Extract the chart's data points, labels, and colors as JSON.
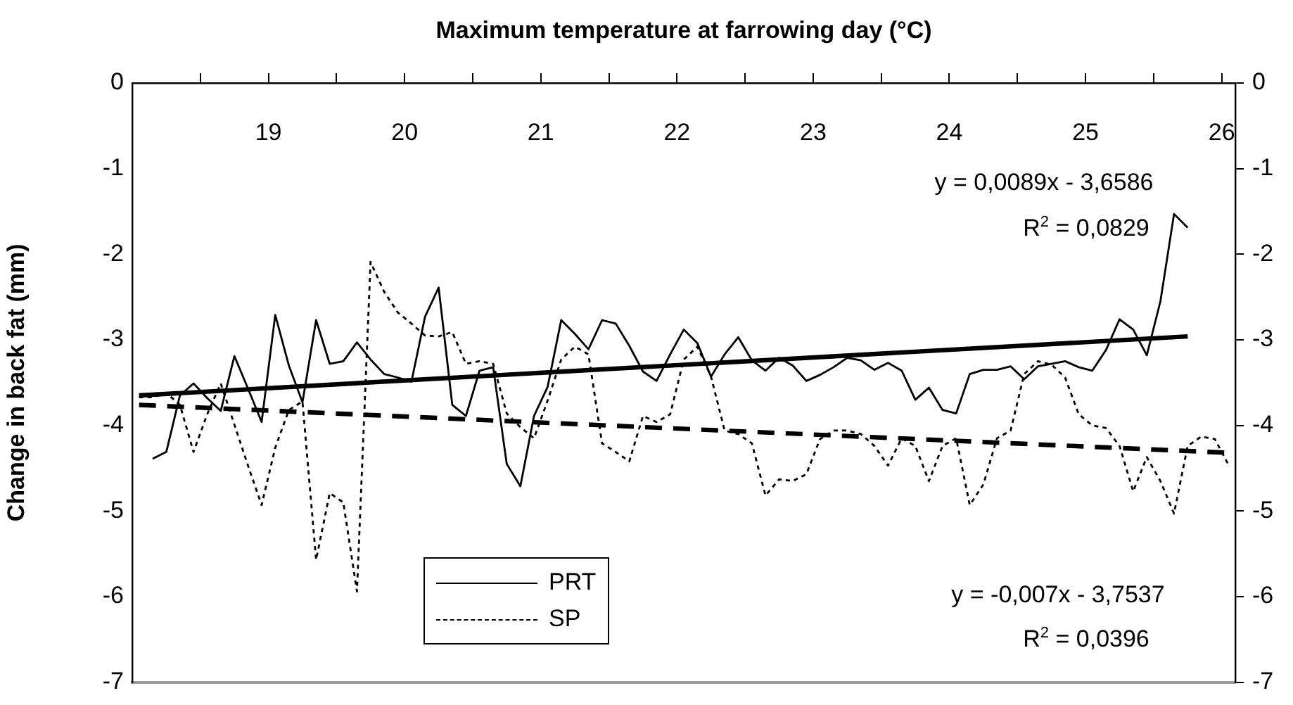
{
  "chart_data": {
    "type": "line",
    "x2label": "Maximum temperature at farrowing day (°C)",
    "ylabel": "Change in back fat (mm)",
    "categories": [
      null,
      null,
      null,
      null,
      null,
      null,
      null,
      null,
      null,
      null,
      null,
      null,
      null,
      null,
      null,
      null,
      null,
      null,
      null,
      null,
      null,
      null,
      null,
      null,
      null,
      null,
      null,
      null,
      null,
      null,
      null,
      null,
      null,
      null,
      null,
      null,
      null,
      null,
      null,
      null,
      null,
      null,
      null,
      null,
      null,
      null,
      null,
      null,
      null,
      null,
      null,
      null,
      null,
      null,
      null,
      null,
      null,
      null,
      null,
      null,
      null,
      null,
      null,
      null,
      null,
      null,
      null,
      null,
      null,
      null,
      null,
      null,
      null,
      null,
      null,
      null,
      null,
      null,
      null,
      null,
      null
    ],
    "series": [
      {
        "name": "PRT",
        "color": "#000000",
        "line_style": "solid",
        "values": [
          null,
          -4.39,
          -4.31,
          -3.65,
          -3.51,
          -3.68,
          -3.83,
          -3.19,
          -3.57,
          -3.96,
          -2.71,
          -3.3,
          -3.73,
          -2.77,
          -3.28,
          -3.25,
          -3.03,
          -3.23,
          -3.4,
          -3.44,
          -3.49,
          -2.73,
          -2.39,
          -3.76,
          -3.89,
          -3.36,
          -3.32,
          -4.45,
          -4.71,
          -3.89,
          -3.55,
          -2.77,
          -2.93,
          -3.11,
          -2.77,
          -2.81,
          -3.07,
          -3.37,
          -3.48,
          -3.17,
          -2.88,
          -3.04,
          -3.43,
          -3.17,
          -2.97,
          -3.24,
          -3.36,
          -3.21,
          -3.3,
          -3.48,
          -3.41,
          -3.32,
          -3.21,
          -3.24,
          -3.35,
          -3.27,
          -3.36,
          -3.7,
          -3.56,
          -3.82,
          -3.86,
          -3.4,
          -3.35,
          -3.35,
          -3.31,
          -3.46,
          -3.31,
          -3.28,
          -3.25,
          -3.32,
          -3.36,
          -3.12,
          -2.76,
          -2.88,
          -3.18,
          -2.55,
          -1.53,
          -1.69,
          null,
          null,
          null
        ]
      },
      {
        "name": "SP",
        "color": "#000000",
        "line_style": "dotted",
        "values": [
          -3.67,
          -3.67,
          -3.62,
          -3.76,
          -4.31,
          -3.87,
          -3.51,
          -3.99,
          -4.47,
          -4.93,
          -4.26,
          -3.82,
          -3.72,
          -5.57,
          -4.79,
          -4.9,
          -5.94,
          -2.09,
          -2.44,
          -2.68,
          -2.81,
          -2.95,
          -2.96,
          -2.91,
          -3.28,
          -3.25,
          -3.28,
          -3.86,
          -4.02,
          -4.15,
          -3.71,
          -3.23,
          -3.08,
          -3.17,
          -4.21,
          -4.31,
          -4.42,
          -3.89,
          -3.96,
          -3.87,
          -3.23,
          -3.08,
          -3.43,
          -4.06,
          -4.1,
          -4.21,
          -4.82,
          -4.63,
          -4.65,
          -4.57,
          -4.16,
          -4.06,
          -4.06,
          -4.1,
          -4.24,
          -4.47,
          -4.15,
          -4.24,
          -4.65,
          -4.24,
          -4.15,
          -4.93,
          -4.69,
          -4.15,
          -4.06,
          -3.4,
          -3.25,
          -3.29,
          -3.44,
          -3.87,
          -4.0,
          -4.03,
          -4.24,
          -4.77,
          -4.37,
          -4.65,
          -5.03,
          -4.24,
          -4.13,
          -4.16,
          -4.46
        ]
      },
      {
        "type": "line",
        "color": "#000000",
        "line_style": "solid",
        "values": [
          -3.65,
          null,
          null,
          null,
          null,
          null,
          null,
          null,
          null,
          null,
          null,
          null,
          null,
          null,
          null,
          null,
          null,
          null,
          null,
          null,
          null,
          null,
          null,
          null,
          null,
          null,
          null,
          null,
          null,
          null,
          null,
          null,
          null,
          null,
          null,
          null,
          null,
          null,
          null,
          null,
          null,
          null,
          null,
          null,
          null,
          null,
          null,
          null,
          null,
          null,
          null,
          null,
          null,
          null,
          null,
          null,
          null,
          null,
          null,
          null,
          null,
          null,
          null,
          null,
          null,
          null,
          null,
          null,
          null,
          null,
          null,
          null,
          null,
          null,
          null,
          null,
          null,
          -2.96,
          null,
          null,
          null
        ]
      },
      {
        "type": "line",
        "color": "#000000",
        "line_style": "dashed",
        "values": [
          -3.76,
          null,
          null,
          null,
          null,
          null,
          null,
          null,
          null,
          null,
          null,
          null,
          null,
          null,
          null,
          null,
          null,
          null,
          null,
          null,
          null,
          null,
          null,
          null,
          null,
          null,
          null,
          null,
          null,
          null,
          null,
          null,
          null,
          null,
          null,
          null,
          null,
          null,
          null,
          null,
          null,
          null,
          null,
          null,
          null,
          null,
          null,
          null,
          null,
          null,
          null,
          null,
          null,
          null,
          null,
          null,
          null,
          null,
          null,
          null,
          null,
          null,
          null,
          null,
          null,
          null,
          null,
          null,
          null,
          null,
          null,
          null,
          null,
          null,
          null,
          null,
          null,
          null,
          null,
          null,
          -4.32
        ]
      }
    ],
    "ylim": [
      -7,
      0
    ],
    "yticks": [
      0,
      -1,
      -2,
      -3,
      -4,
      -5,
      -6,
      -7
    ],
    "y2lim": [
      -7,
      0
    ],
    "y2ticks": [
      0,
      -1,
      -2,
      -3,
      -4,
      -5,
      -6,
      -7
    ],
    "x2lim": [
      18,
      26.1
    ],
    "x2ticks": [
      {
        "value": 18.5,
        "label": null
      },
      19,
      {
        "value": 19.5,
        "label": null
      },
      20,
      {
        "value": 20.5,
        "label": null
      },
      21,
      {
        "value": 21.5,
        "label": null
      },
      22,
      {
        "value": 22.5,
        "label": null
      },
      23,
      {
        "value": 23.5,
        "label": null
      },
      24,
      {
        "value": 24.5,
        "label": null
      },
      25,
      {
        "value": 25.5,
        "label": null
      },
      26
    ],
    "annotations": [
      "y = 0,0089x - 3,6586",
      "R$^{2}$ = 0,0829",
      "y = -0,007x - 3,7537",
      "R$^{2}$ = 0,0396"
    ],
    "grid": false,
    "legend": "bottom left",
    "marker": "none"
  }
}
